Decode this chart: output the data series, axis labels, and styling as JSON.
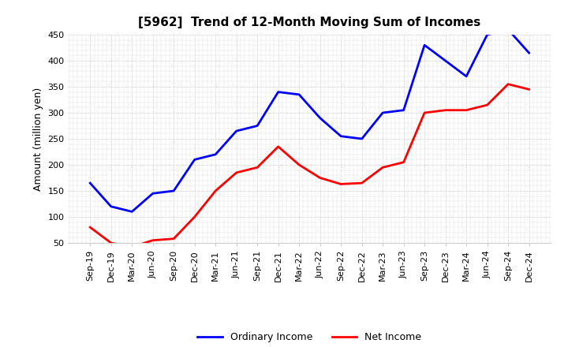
{
  "title": "[5962]  Trend of 12-Month Moving Sum of Incomes",
  "ylabel": "Amount (million yen)",
  "ylim": [
    50,
    450
  ],
  "yticks": [
    50,
    100,
    150,
    200,
    250,
    300,
    350,
    400,
    450
  ],
  "x_labels": [
    "Sep-19",
    "Dec-19",
    "Mar-20",
    "Jun-20",
    "Sep-20",
    "Dec-20",
    "Mar-21",
    "Jun-21",
    "Sep-21",
    "Dec-21",
    "Mar-22",
    "Jun-22",
    "Sep-22",
    "Dec-22",
    "Mar-23",
    "Jun-23",
    "Sep-23",
    "Dec-23",
    "Mar-24",
    "Jun-24",
    "Sep-24",
    "Dec-24"
  ],
  "ordinary_income": [
    165,
    120,
    110,
    145,
    150,
    210,
    220,
    265,
    275,
    340,
    335,
    290,
    255,
    250,
    300,
    305,
    430,
    400,
    370,
    450,
    460,
    415
  ],
  "net_income": [
    80,
    50,
    42,
    55,
    58,
    100,
    150,
    185,
    195,
    235,
    200,
    175,
    163,
    165,
    195,
    205,
    300,
    305,
    305,
    315,
    355,
    345
  ],
  "ordinary_color": "#0000ff",
  "net_color": "#ff0000",
  "background_color": "#ffffff",
  "grid_color": "#aaaaaa",
  "title_fontsize": 11,
  "axis_fontsize": 9,
  "tick_fontsize": 8,
  "legend_fontsize": 9,
  "line_width": 2.0
}
